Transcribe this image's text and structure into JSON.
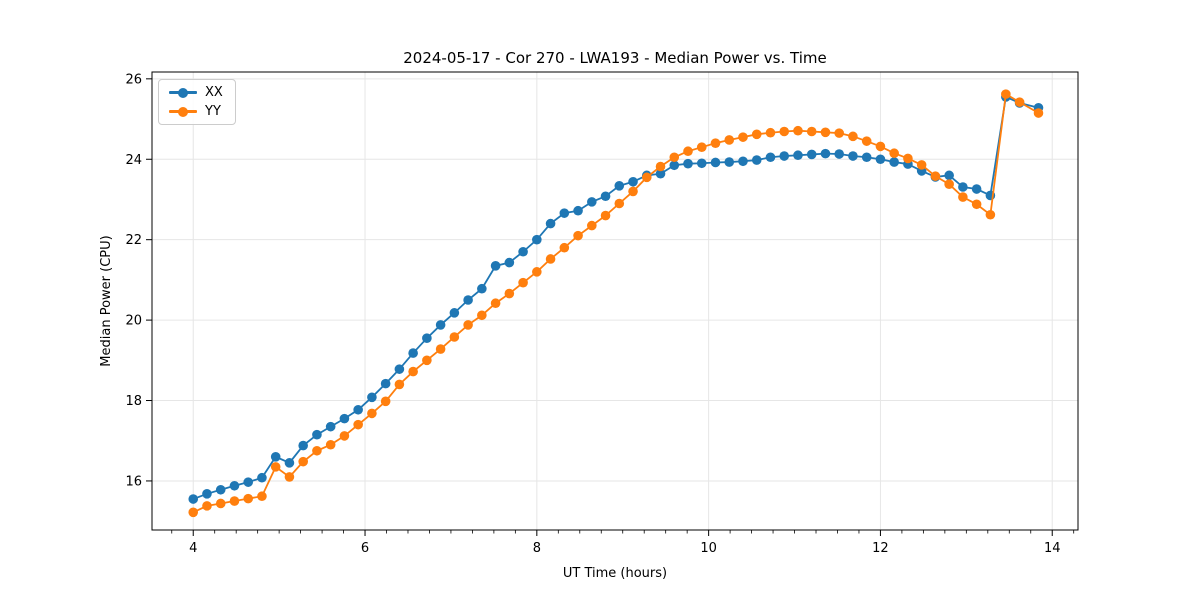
{
  "chart_data": {
    "type": "line",
    "title": "2024-05-17 - Cor 270 - LWA193 - Median Power vs. Time",
    "xlabel": "UT Time (hours)",
    "ylabel": "Median Power (CPU)",
    "xlim": [
      3.52,
      14.3
    ],
    "ylim": [
      14.78,
      26.17
    ],
    "x_ticks": [
      4,
      6,
      8,
      10,
      12,
      14
    ],
    "y_ticks": [
      16,
      18,
      20,
      22,
      24,
      26
    ],
    "x_minor_step": 0.25,
    "grid": true,
    "grid_color": "#e6e6e6",
    "legend_position": "upper left",
    "x": [
      4.0,
      4.16,
      4.32,
      4.48,
      4.64,
      4.8,
      4.96,
      5.12,
      5.28,
      5.44,
      5.6,
      5.76,
      5.92,
      6.08,
      6.24,
      6.4,
      6.56,
      6.72,
      6.88,
      7.04,
      7.2,
      7.36,
      7.52,
      7.68,
      7.84,
      8.0,
      8.16,
      8.32,
      8.48,
      8.64,
      8.8,
      8.96,
      9.12,
      9.28,
      9.44,
      9.6,
      9.76,
      9.92,
      10.08,
      10.24,
      10.4,
      10.56,
      10.72,
      10.88,
      11.04,
      11.2,
      11.36,
      11.52,
      11.68,
      11.84,
      12.0,
      12.16,
      12.32,
      12.48,
      12.64,
      12.8,
      12.96,
      13.12,
      13.28,
      13.46,
      13.62,
      13.84
    ],
    "series": [
      {
        "name": "XX",
        "color": "#1f77b4",
        "values": [
          15.55,
          15.68,
          15.78,
          15.88,
          15.97,
          16.08,
          16.6,
          16.45,
          16.88,
          17.15,
          17.35,
          17.55,
          17.77,
          18.08,
          18.42,
          18.78,
          19.18,
          19.55,
          19.88,
          20.18,
          20.5,
          20.78,
          21.35,
          21.43,
          21.7,
          22.0,
          22.4,
          22.66,
          22.72,
          22.94,
          23.08,
          23.34,
          23.44,
          23.6,
          23.64,
          23.85,
          23.89,
          23.9,
          23.92,
          23.93,
          23.95,
          23.98,
          24.05,
          24.08,
          24.1,
          24.12,
          24.14,
          24.13,
          24.08,
          24.05,
          24.0,
          23.93,
          23.88,
          23.71,
          23.56,
          23.6,
          23.31,
          23.26,
          23.1,
          25.55,
          25.4,
          25.28
        ]
      },
      {
        "name": "YY",
        "color": "#ff7f0e",
        "values": [
          15.22,
          15.38,
          15.44,
          15.5,
          15.56,
          15.62,
          16.35,
          16.1,
          16.48,
          16.75,
          16.9,
          17.12,
          17.4,
          17.68,
          17.98,
          18.4,
          18.72,
          19.0,
          19.28,
          19.58,
          19.88,
          20.12,
          20.42,
          20.66,
          20.93,
          21.2,
          21.52,
          21.8,
          22.1,
          22.35,
          22.6,
          22.9,
          23.2,
          23.55,
          23.82,
          24.05,
          24.2,
          24.3,
          24.4,
          24.48,
          24.55,
          24.62,
          24.66,
          24.69,
          24.71,
          24.69,
          24.67,
          24.65,
          24.57,
          24.45,
          24.32,
          24.15,
          24.02,
          23.86,
          23.58,
          23.38,
          23.06,
          22.88,
          22.62,
          25.62,
          25.42,
          25.15
        ]
      }
    ]
  }
}
